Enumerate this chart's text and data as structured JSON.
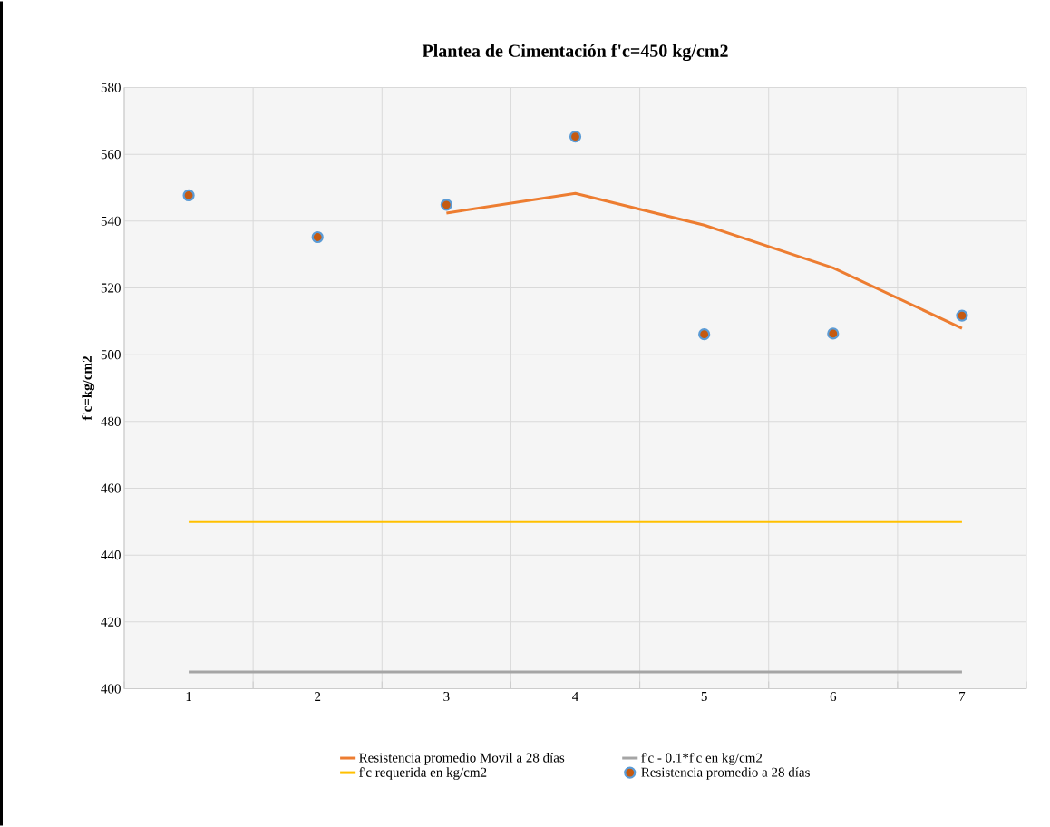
{
  "chart_data": {
    "type": "line",
    "title": "Plantea de Cimentación f'c=450 kg/cm2",
    "ylabel": "f'c=kg/cm2",
    "categories": [
      "1",
      "2",
      "3",
      "4",
      "5",
      "6",
      "7"
    ],
    "series": [
      {
        "name": "Resistencia promedio Movil a 28 días",
        "color": "#ed7d31",
        "values": [
          null,
          null,
          542.4,
          548.3,
          538.8,
          526,
          507.9
        ]
      },
      {
        "name": "f'c - 0.1*f'c en kg/cm2",
        "color": "#a5a5a5",
        "values": [
          405,
          405,
          405,
          405,
          405,
          405,
          405
        ]
      },
      {
        "name": "f'c requerida en kg/cm2",
        "color": "#ffc000",
        "values": [
          450,
          450,
          450,
          450,
          450,
          450,
          450
        ]
      },
      {
        "name": "Resistencia promedio a 28 días",
        "type": "scatter",
        "color": "#c55a11",
        "values": [
          547.7,
          535.2,
          544.9,
          565.3,
          506.1,
          506.3,
          511.7
        ]
      }
    ],
    "ylim": [
      400,
      580
    ],
    "yticks": [
      400,
      420,
      440,
      460,
      480,
      500,
      520,
      540,
      560,
      580
    ],
    "grid": true,
    "legend": "bottom"
  }
}
